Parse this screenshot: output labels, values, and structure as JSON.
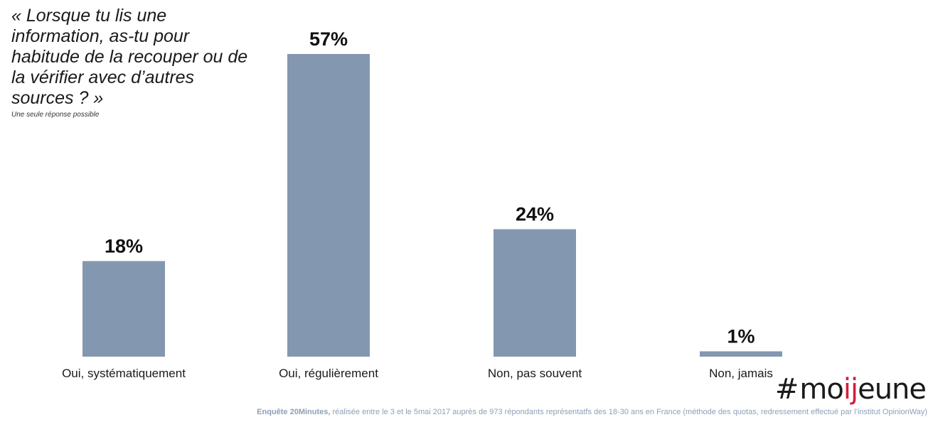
{
  "chart_data": {
    "type": "bar",
    "title": "« Lorsque tu lis une information, as-tu pour habitude de la recouper ou de la vérifier avec d’autres sources ? »",
    "subtitle": "Une seule réponse possible",
    "categories": [
      "Oui, systématiquement",
      "Oui, régulièrement",
      "Non, pas souvent",
      "Non, jamais"
    ],
    "values": [
      18,
      57,
      24,
      1
    ],
    "value_labels": [
      "18%",
      "57%",
      "24%",
      "1%"
    ],
    "ylim": [
      0,
      57
    ],
    "grid": false,
    "bar_color": "#8497b0"
  },
  "logo": {
    "hash": "#",
    "part1": "mo",
    "accent": "ij",
    "part2": "eune"
  },
  "footer": {
    "source_bold": "Enquête 20Minutes,",
    "source_text": "réalisée entre le 3 et le 5mai 2017 auprès de 973 répondants représentatfs des 18-30 ans en France (méthode des quotas, redressement effectué par l’institut OpinionWay)"
  }
}
